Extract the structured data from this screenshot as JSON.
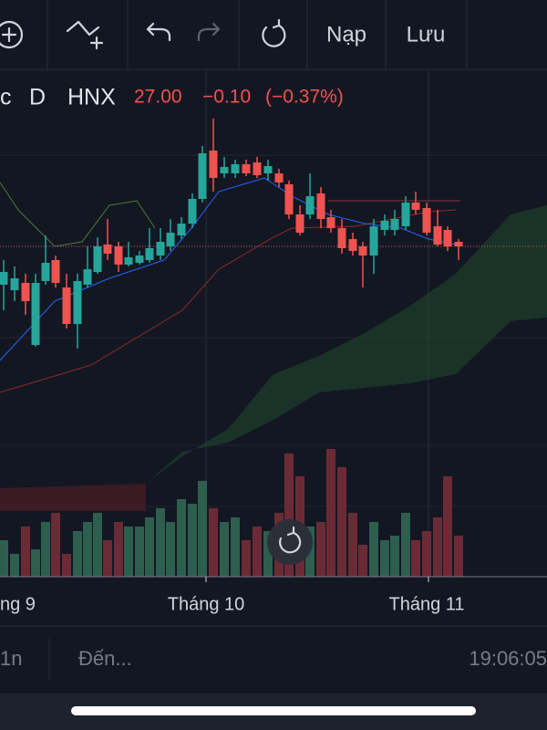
{
  "toolbar": {
    "load": "Nạp",
    "save": "Lưu"
  },
  "symbol": {
    "name": "c",
    "interval": "D",
    "exchange": "HNX",
    "price": "27.00",
    "change": "−0.10",
    "change_percent": "(−0.37%)"
  },
  "x_axis": {
    "labels": [
      "ng 9",
      "Tháng 10",
      "Tháng 11"
    ]
  },
  "bottom_bar": {
    "range": "1n",
    "goto": "Đến...",
    "time": "19:06:05"
  }
}
